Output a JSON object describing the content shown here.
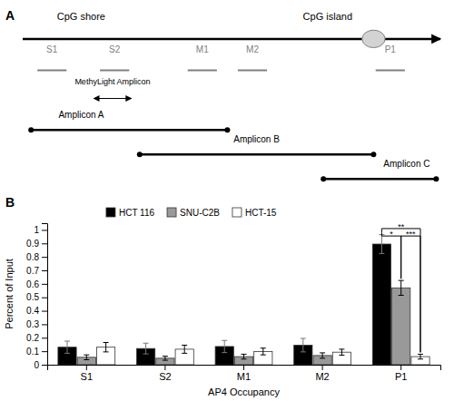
{
  "chart_data": [
    {
      "type": "diagram",
      "title": "A",
      "annotations": [
        "CpG shore",
        "CpG island",
        "MethyLight Amplicon",
        "Amplicon A",
        "Amplicon B",
        "Amplicon C"
      ],
      "categories": [
        "S1",
        "S2",
        "M1",
        "M2",
        "P1"
      ]
    },
    {
      "type": "bar",
      "title": "B",
      "categories": [
        "S1",
        "S2",
        "M1",
        "M2",
        "P1"
      ],
      "series": [
        {
          "name": "HCT 116",
          "color": "black",
          "values": [
            0.13,
            0.12,
            0.135,
            0.145,
            0.895
          ],
          "errors": [
            0.045,
            0.04,
            0.045,
            0.05,
            0.07
          ]
        },
        {
          "name": "SNU-C2B",
          "color": "#999999",
          "values": [
            0.055,
            0.048,
            0.06,
            0.068,
            0.57
          ],
          "errors": [
            0.018,
            0.015,
            0.018,
            0.02,
            0.055
          ]
        },
        {
          "name": "HCT-15",
          "color": "white",
          "values": [
            0.13,
            0.115,
            0.098,
            0.093,
            0.06
          ],
          "errors": [
            0.035,
            0.03,
            0.025,
            0.022,
            0.018
          ]
        }
      ],
      "xlabel": "AP4 Occupancy",
      "ylabel": "Percent of Input",
      "ylim": [
        0,
        1.05
      ],
      "yticks": [
        0,
        0.1,
        0.2,
        0.3,
        0.4,
        0.5,
        0.6,
        0.7,
        0.8,
        0.9,
        1
      ],
      "grid": false,
      "legend": "upper left",
      "annotations": [
        {
          "text": "**",
          "category": "P1",
          "series": [
            "HCT 116",
            "HCT-15"
          ],
          "y": 1.01
        },
        {
          "text": "*",
          "category": "P1",
          "series": [
            "HCT 116",
            "SNU-C2B"
          ],
          "y": 0.955
        },
        {
          "text": "***",
          "category": "P1",
          "series": [
            "SNU-C2B",
            "HCT-15"
          ],
          "y": 0.955
        }
      ]
    }
  ]
}
